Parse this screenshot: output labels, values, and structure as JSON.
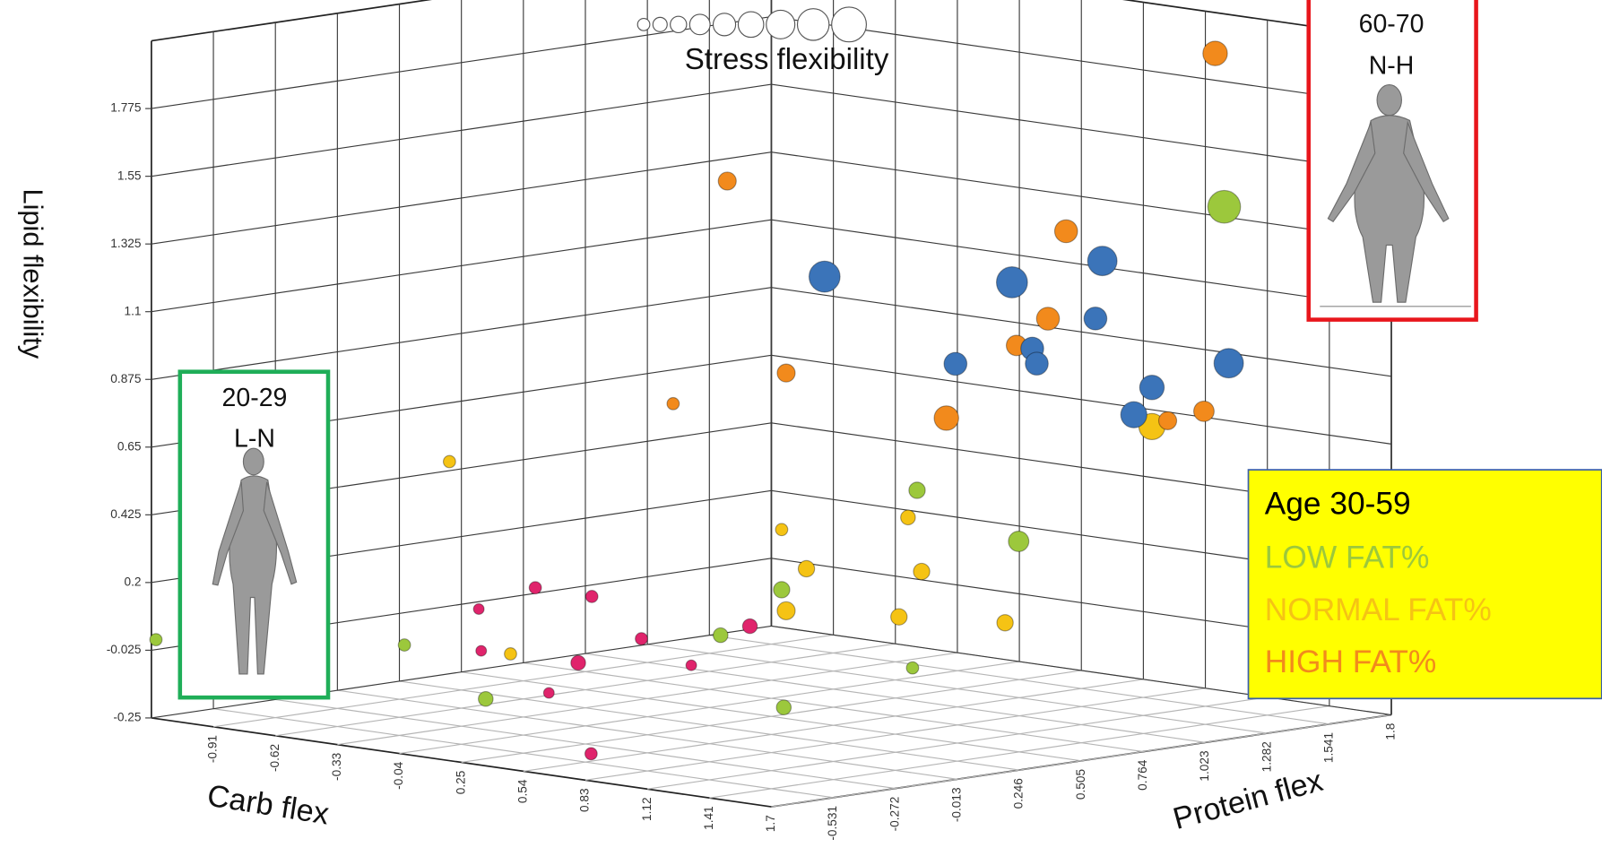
{
  "chart_data": {
    "type": "scatter3d",
    "size_title": "Stress flexibility",
    "xlabel": "Carb flex",
    "ylabel": "Protein flex",
    "zlabel": "Lipid flexibility",
    "xlim": [
      -1.2,
      1.7
    ],
    "ylim": [
      -0.79,
      1.8
    ],
    "zlim": [
      -0.25,
      2.0
    ],
    "xticks": [
      -0.91,
      -0.62,
      -0.33,
      -0.04,
      0.25,
      0.54,
      0.83,
      1.12,
      1.41,
      1.7
    ],
    "yticks": [
      -0.531,
      -0.272,
      -0.013,
      0.246,
      0.505,
      0.764,
      1.023,
      1.282,
      1.541,
      1.8
    ],
    "zticks": [
      -0.25,
      -0.025,
      0.2,
      0.425,
      0.65,
      0.875,
      1.1,
      1.325,
      1.55,
      1.775
    ],
    "grid": true,
    "legend_title": "Age 30-59",
    "series": [
      {
        "color": "#e0246c",
        "x": [
          -0.3,
          -0.17,
          -0.43,
          0.2,
          -0.05,
          -0.43,
          -0.2,
          0.06,
          -0.27,
          0.42
        ],
        "y": [
          0.01,
          0.13,
          -0.11,
          0.46,
          0.23,
          -0.1,
          0.1,
          0.34,
          0.04,
          -0.4
        ],
        "z": [
          0.18,
          0.15,
          0.11,
          0.05,
          0.01,
          -0.03,
          -0.07,
          -0.08,
          -0.17,
          -0.25
        ],
        "size": [
          0.25,
          0.25,
          0.15,
          0.4,
          0.25,
          0.15,
          0.4,
          0.15,
          0.15,
          0.25
        ]
      },
      {
        "name": "LOW FAT%",
        "color": "#9cc83c",
        "x": [
          1.31,
          0.59,
          0.83,
          0.27,
          0.13,
          -1.19,
          -0.61,
          0.58,
          -0.42,
          0.28
        ],
        "y": [
          1.45,
          0.81,
          1.02,
          0.53,
          0.4,
          -0.78,
          -0.26,
          0.8,
          -0.09,
          0.53
        ],
        "z": [
          1.44,
          0.5,
          0.33,
          0.17,
          0.02,
          0.01,
          -0.01,
          -0.09,
          -0.19,
          -0.22
        ],
        "size": [
          1.5,
          0.5,
          0.75,
          0.5,
          0.4,
          0.25,
          0.25,
          0.25,
          0.4,
          0.4
        ]
      },
      {
        "name": "NORMAL FAT%",
        "color": "#f5c314",
        "x": [
          1.14,
          -0.5,
          0.57,
          0.27,
          0.33,
          0.6,
          0.28,
          0.55,
          0.8,
          -0.36
        ],
        "y": [
          1.3,
          -0.17,
          0.79,
          0.53,
          0.58,
          0.82,
          0.54,
          0.77,
          0.99,
          -0.04
        ],
        "z": [
          0.71,
          0.6,
          0.41,
          0.37,
          0.24,
          0.23,
          0.1,
          0.08,
          0.06,
          -0.04
        ],
        "size": [
          1.1,
          0.25,
          0.4,
          0.25,
          0.5,
          0.5,
          0.6,
          0.5,
          0.5,
          0.25
        ]
      },
      {
        "name": "HIGH FAT%",
        "color": "#f28a1c",
        "x": [
          1.29,
          0.15,
          0.94,
          0.9,
          0.82,
          0.28,
          0.02,
          0.66,
          1.18,
          1.26
        ],
        "y": [
          1.43,
          0.41,
          1.12,
          1.08,
          1.02,
          0.54,
          0.3,
          0.87,
          1.33,
          1.41
        ],
        "z": [
          1.95,
          1.53,
          1.36,
          1.07,
          0.98,
          0.89,
          0.79,
          0.74,
          0.73,
          0.76
        ],
        "size": [
          1.0,
          0.6,
          0.9,
          0.9,
          0.75,
          0.6,
          0.25,
          1.0,
          0.6,
          0.75
        ]
      },
      {
        "color": "#3b74b9",
        "x": [
          0.37,
          0.81,
          1.02,
          1.32,
          1.01,
          0.68,
          0.86,
          0.87,
          1.14,
          1.1
        ],
        "y": [
          0.62,
          1.01,
          1.2,
          1.46,
          1.18,
          0.89,
          1.05,
          1.06,
          1.3,
          1.26
        ],
        "z": [
          1.21,
          1.19,
          1.26,
          0.92,
          1.07,
          0.92,
          0.97,
          0.92,
          0.84,
          0.75
        ],
        "size": [
          1.4,
          1.4,
          1.3,
          1.3,
          0.9,
          0.9,
          0.9,
          0.9,
          1.0,
          1.1
        ]
      }
    ]
  },
  "insets": [
    {
      "title": "20-29",
      "subtitle": "L-N",
      "border": "#1fae58"
    },
    {
      "title": "60-70",
      "subtitle": "N-H",
      "border": "#e8161c"
    }
  ]
}
